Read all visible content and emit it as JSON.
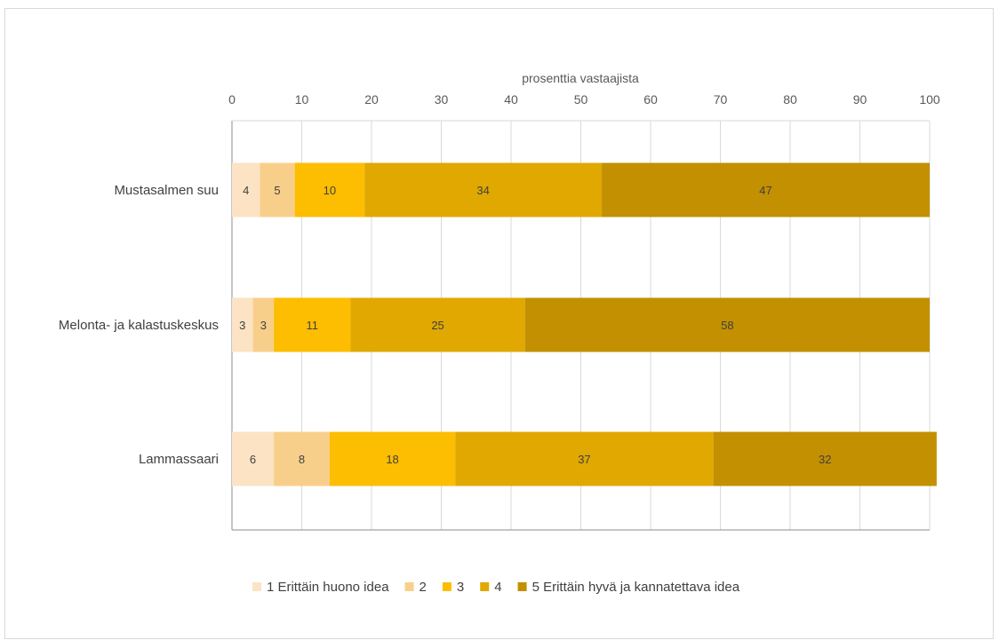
{
  "chart_data": {
    "type": "bar",
    "orientation": "horizontal",
    "stacked": true,
    "title": "",
    "xlabel": "prosenttia vastaajista",
    "ylabel": "",
    "xlim": [
      0,
      100
    ],
    "x_ticks": [
      "0",
      "10",
      "20",
      "30",
      "40",
      "50",
      "60",
      "70",
      "80",
      "90",
      "100"
    ],
    "x_axis_position": "top",
    "grid": "vertical",
    "legend_position": "bottom",
    "categories": [
      "Mustasalmen suu",
      "Melonta- ja kalastuskeskus",
      "Lammassaari"
    ],
    "series": [
      {
        "name": "1 Erittäin huono idea",
        "color": "#fbe3c4",
        "values": [
          4,
          3,
          6
        ],
        "labels": [
          "4",
          "3",
          "6"
        ]
      },
      {
        "name": "2",
        "color": "#f8cf8a",
        "values": [
          5,
          3,
          8
        ],
        "labels": [
          "5",
          "3",
          "8"
        ]
      },
      {
        "name": "3",
        "color": "#fdbd00",
        "values": [
          10,
          11,
          18
        ],
        "labels": [
          "10",
          "11",
          "18"
        ]
      },
      {
        "name": "4",
        "color": "#e0a800",
        "values": [
          34,
          25,
          37
        ],
        "labels": [
          "34",
          "25",
          "37"
        ]
      },
      {
        "name": "5 Erittäin hyvä ja kannatettava idea",
        "color": "#c29000",
        "values": [
          47,
          58,
          32
        ],
        "labels": [
          "47",
          "58",
          "32"
        ]
      }
    ]
  }
}
